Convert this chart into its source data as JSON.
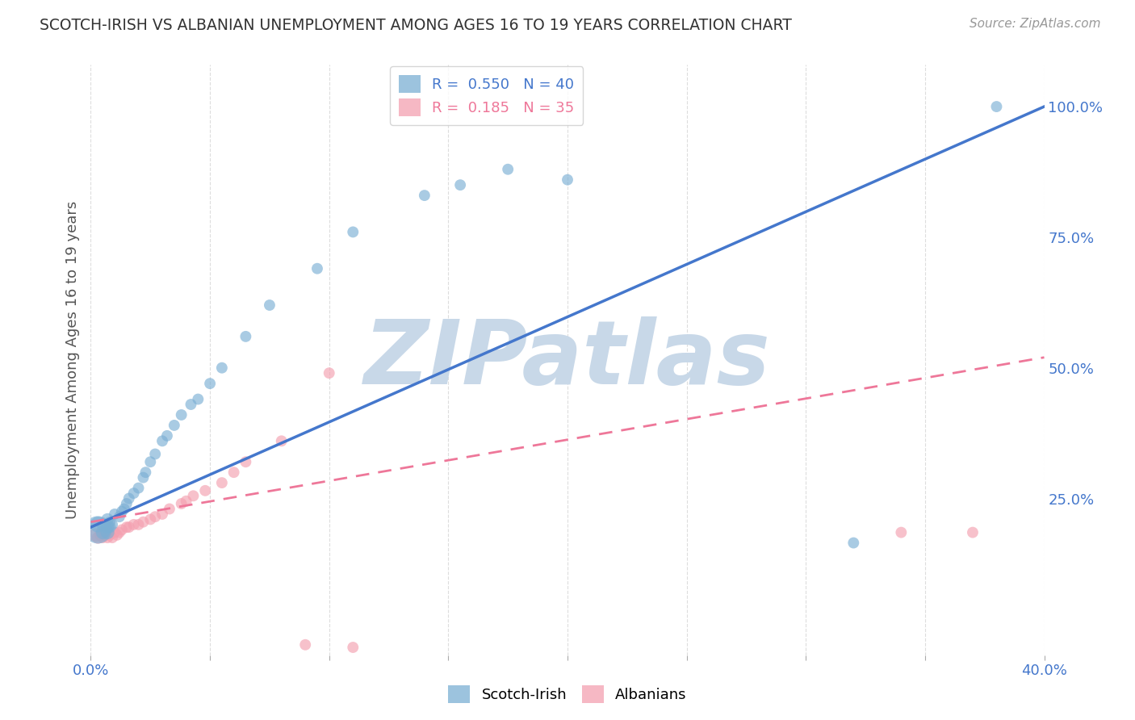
{
  "title": "SCOTCH-IRISH VS ALBANIAN UNEMPLOYMENT AMONG AGES 16 TO 19 YEARS CORRELATION CHART",
  "source": "Source: ZipAtlas.com",
  "ylabel": "Unemployment Among Ages 16 to 19 years",
  "xlim": [
    0.0,
    0.4
  ],
  "ylim": [
    -0.05,
    1.08
  ],
  "xticks": [
    0.0,
    0.05,
    0.1,
    0.15,
    0.2,
    0.25,
    0.3,
    0.35,
    0.4
  ],
  "ytick_right_labels": [
    "",
    "25.0%",
    "50.0%",
    "75.0%",
    "100.0%"
  ],
  "ytick_right_values": [
    0.0,
    0.25,
    0.5,
    0.75,
    1.0
  ],
  "scotch_irish_color": "#7BAFD4",
  "albanian_color": "#F4A0B0",
  "scotch_irish_line_color": "#4477CC",
  "albanian_line_color": "#EE7799",
  "legend_scotch_label": "R =  0.550   N = 40",
  "legend_albanian_label": "R =  0.185   N = 35",
  "scotch_irish_x": [
    0.003,
    0.003,
    0.005,
    0.005,
    0.007,
    0.007,
    0.007,
    0.008,
    0.008,
    0.009,
    0.01,
    0.012,
    0.013,
    0.014,
    0.015,
    0.016,
    0.018,
    0.02,
    0.022,
    0.023,
    0.025,
    0.027,
    0.03,
    0.032,
    0.035,
    0.038,
    0.042,
    0.045,
    0.05,
    0.055,
    0.065,
    0.075,
    0.095,
    0.11,
    0.14,
    0.155,
    0.175,
    0.2,
    0.32,
    0.38
  ],
  "scotch_irish_y": [
    0.19,
    0.2,
    0.185,
    0.2,
    0.185,
    0.195,
    0.21,
    0.195,
    0.205,
    0.2,
    0.22,
    0.215,
    0.225,
    0.23,
    0.24,
    0.25,
    0.26,
    0.27,
    0.29,
    0.3,
    0.32,
    0.335,
    0.36,
    0.37,
    0.39,
    0.41,
    0.43,
    0.44,
    0.47,
    0.5,
    0.56,
    0.62,
    0.69,
    0.76,
    0.83,
    0.85,
    0.88,
    0.86,
    0.165,
    1.0
  ],
  "scotch_irish_sizes": [
    600,
    200,
    150,
    120,
    150,
    130,
    120,
    110,
    100,
    100,
    100,
    100,
    100,
    100,
    100,
    100,
    100,
    100,
    100,
    100,
    100,
    100,
    100,
    100,
    100,
    100,
    100,
    100,
    100,
    100,
    100,
    100,
    100,
    100,
    100,
    100,
    100,
    100,
    100,
    100
  ],
  "albanian_x": [
    0.002,
    0.003,
    0.004,
    0.005,
    0.006,
    0.006,
    0.007,
    0.008,
    0.009,
    0.01,
    0.011,
    0.012,
    0.013,
    0.015,
    0.016,
    0.018,
    0.02,
    0.022,
    0.025,
    0.027,
    0.03,
    0.033,
    0.038,
    0.04,
    0.043,
    0.048,
    0.055,
    0.06,
    0.065,
    0.08,
    0.09,
    0.1,
    0.11,
    0.34,
    0.37
  ],
  "albanian_y": [
    0.18,
    0.175,
    0.18,
    0.175,
    0.18,
    0.185,
    0.175,
    0.18,
    0.175,
    0.185,
    0.18,
    0.185,
    0.19,
    0.195,
    0.195,
    0.2,
    0.2,
    0.205,
    0.21,
    0.215,
    0.22,
    0.23,
    0.24,
    0.245,
    0.255,
    0.265,
    0.28,
    0.3,
    0.32,
    0.36,
    -0.03,
    0.49,
    -0.035,
    0.185,
    0.185
  ],
  "albanian_sizes": [
    150,
    120,
    110,
    100,
    100,
    100,
    100,
    100,
    100,
    100,
    100,
    100,
    100,
    100,
    100,
    100,
    100,
    100,
    100,
    100,
    100,
    100,
    100,
    100,
    100,
    100,
    100,
    100,
    100,
    100,
    100,
    100,
    100,
    100,
    100
  ],
  "background_color": "#FFFFFF",
  "grid_color": "#DDDDDD",
  "watermark_text": "ZIPatlas",
  "watermark_color": "#C8D8E8"
}
